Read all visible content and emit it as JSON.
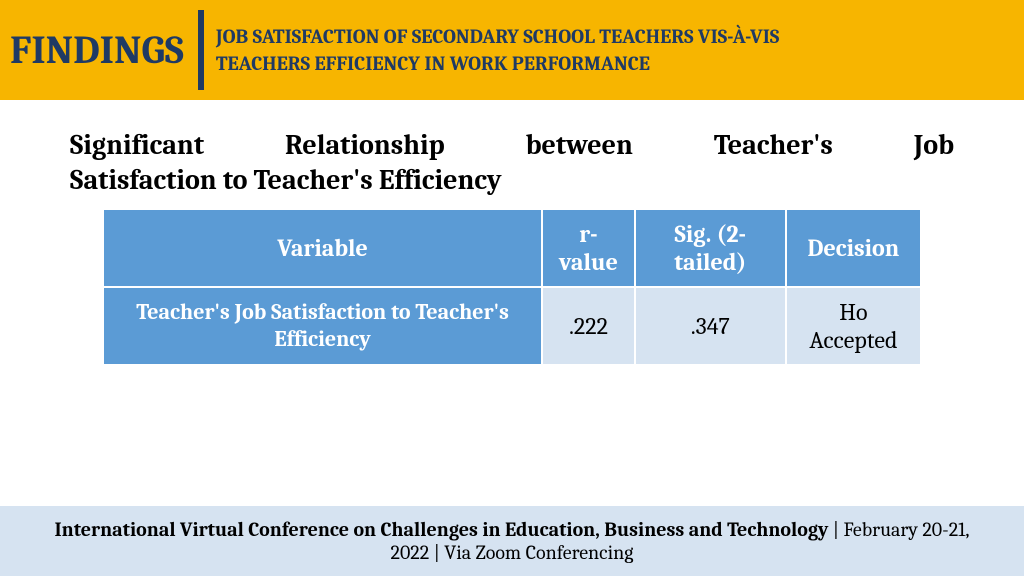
{
  "header": {
    "title": "FINDINGS",
    "subtitle_line1": "JOB SATISFACTION OF SECONDARY SCHOOL TEACHERS VIS-À-VIS",
    "subtitle_line2": "TEACHERS EFFICIENCY IN WORK PERFORMANCE",
    "bg_color": "#f7b500",
    "text_color": "#1f3a64"
  },
  "section": {
    "heading_line1": "Significant Relationship between Teacher's Job",
    "heading_line2": "Satisfaction to Teacher's Efficiency"
  },
  "table": {
    "columns": [
      "Variable",
      "r-value",
      "Sig. (2-tailed)",
      "Decision"
    ],
    "rows": [
      {
        "label": "Teacher's Job Satisfaction to Teacher's Efficiency",
        "r_value": ".222",
        "sig": ".347",
        "decision": "Ho Accepted"
      }
    ],
    "header_bg": "#5b9bd5",
    "header_fg": "#ffffff",
    "cell_bg": "#d6e3f1",
    "cell_fg": "#000000"
  },
  "footer": {
    "conference": "International Virtual Conference on Challenges in Education, Business and Technology",
    "sep": " | ",
    "date": "February 20-21, 2022",
    "venue": "Via Zoom Conferencing",
    "bg_color": "#d6e3f1"
  }
}
